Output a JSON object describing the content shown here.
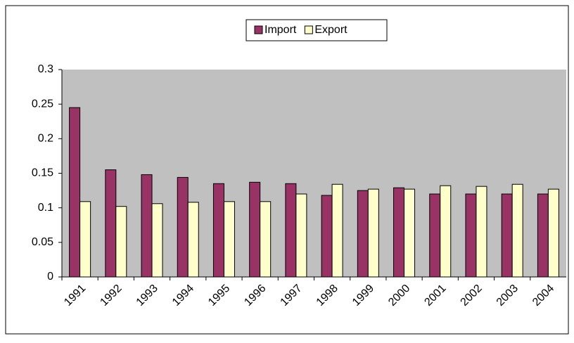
{
  "chart_data": {
    "type": "bar",
    "categories": [
      "1991",
      "1992",
      "1993",
      "1994",
      "1995",
      "1996",
      "1997",
      "1998",
      "1999",
      "2000",
      "2001",
      "2002",
      "2003",
      "2004"
    ],
    "series": [
      {
        "name": "Import",
        "color": "#993366",
        "values": [
          0.245,
          0.155,
          0.148,
          0.144,
          0.135,
          0.137,
          0.135,
          0.118,
          0.125,
          0.129,
          0.12,
          0.12,
          0.12,
          0.12
        ]
      },
      {
        "name": "Export",
        "color": "#ffffcc",
        "values": [
          0.109,
          0.102,
          0.106,
          0.108,
          0.109,
          0.109,
          0.12,
          0.134,
          0.127,
          0.127,
          0.132,
          0.131,
          0.134,
          0.127
        ]
      }
    ],
    "ylim": [
      0,
      0.3
    ],
    "yticks": [
      0,
      0.05,
      0.1,
      0.15,
      0.2,
      0.25,
      0.3
    ],
    "plot_background": "#c0c0c0",
    "legend": "top"
  }
}
